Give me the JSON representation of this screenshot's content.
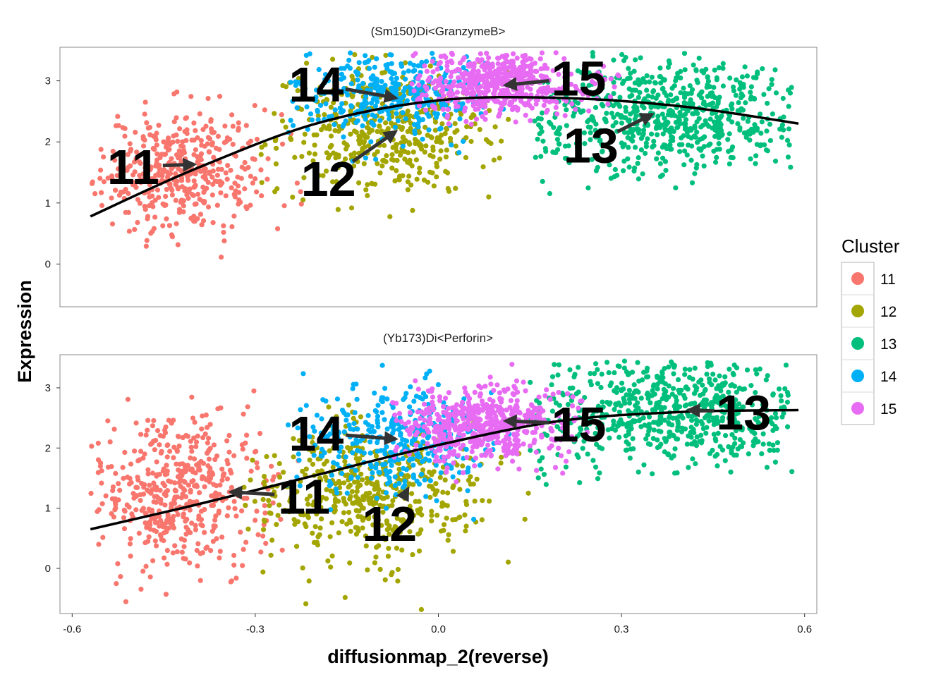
{
  "chart_data": {
    "type": "scatter",
    "xlabel": "diffusionmap_2(reverse)",
    "ylabel": "Expression",
    "xlim": [
      -0.62,
      0.62
    ],
    "x_ticks": [
      "-0.6",
      "-0.3",
      "0.0",
      "0.3",
      "0.6"
    ],
    "y_ticks": [
      "0",
      "1",
      "2",
      "3"
    ],
    "legend": {
      "title": "Cluster",
      "position": "right",
      "entries": [
        {
          "label": "11",
          "color": "#F8766D"
        },
        {
          "label": "12",
          "color": "#A3A500"
        },
        {
          "label": "13",
          "color": "#00BF7D"
        },
        {
          "label": "14",
          "color": "#00B0F6"
        },
        {
          "label": "15",
          "color": "#E76BF3"
        }
      ]
    },
    "panels": [
      {
        "title": "(Sm150)Di<GranzymeB>",
        "ylim": [
          -0.7,
          3.55
        ],
        "clusters": [
          {
            "name": "11",
            "x_mean": -0.42,
            "x_sd": 0.07,
            "y_mean": 1.55,
            "y_sd": 0.5,
            "n": 420,
            "x_range": [
              -0.57,
              -0.2
            ]
          },
          {
            "name": "12",
            "x_mean": -0.08,
            "x_sd": 0.09,
            "y_mean": 2.15,
            "y_sd": 0.5,
            "n": 450,
            "x_range": [
              -0.3,
              0.12
            ]
          },
          {
            "name": "13",
            "x_mean": 0.38,
            "x_sd": 0.12,
            "y_mean": 2.45,
            "y_sd": 0.45,
            "n": 650,
            "x_range": [
              0.15,
              0.58
            ]
          },
          {
            "name": "14",
            "x_mean": -0.07,
            "x_sd": 0.08,
            "y_mean": 2.75,
            "y_sd": 0.35,
            "n": 350,
            "x_range": [
              -0.25,
              0.12
            ]
          },
          {
            "name": "15",
            "x_mean": 0.1,
            "x_sd": 0.07,
            "y_mean": 2.95,
            "y_sd": 0.25,
            "n": 550,
            "x_range": [
              -0.05,
              0.3
            ]
          }
        ],
        "trend": {
          "x": [
            -0.57,
            -0.4,
            -0.2,
            0.0,
            0.2,
            0.4,
            0.59
          ],
          "y": [
            0.78,
            1.55,
            2.3,
            2.68,
            2.72,
            2.58,
            2.3
          ]
        },
        "labels": [
          {
            "text": "11",
            "x": -0.5,
            "y": 1.6,
            "arrow_to_x": -0.4,
            "arrow_to_y": 1.63
          },
          {
            "text": "12",
            "x": -0.18,
            "y": 1.4,
            "arrow_to_x": -0.07,
            "arrow_to_y": 2.17
          },
          {
            "text": "13",
            "x": 0.25,
            "y": 1.95,
            "arrow_to_x": 0.35,
            "arrow_to_y": 2.45
          },
          {
            "text": "14",
            "x": -0.2,
            "y": 2.95,
            "arrow_to_x": -0.07,
            "arrow_to_y": 2.72
          },
          {
            "text": "15",
            "x": 0.23,
            "y": 3.05,
            "arrow_to_x": 0.11,
            "arrow_to_y": 2.93
          }
        ]
      },
      {
        "title": "(Yb173)Di<Perforin>",
        "ylim": [
          -0.75,
          3.55
        ],
        "clusters": [
          {
            "name": "11",
            "x_mean": -0.43,
            "x_sd": 0.07,
            "y_mean": 1.25,
            "y_sd": 0.6,
            "n": 480,
            "x_range": [
              -0.57,
              -0.22
            ]
          },
          {
            "name": "12",
            "x_mean": -0.12,
            "x_sd": 0.09,
            "y_mean": 1.25,
            "y_sd": 0.55,
            "n": 500,
            "x_range": [
              -0.32,
              0.15
            ]
          },
          {
            "name": "13",
            "x_mean": 0.38,
            "x_sd": 0.12,
            "y_mean": 2.6,
            "y_sd": 0.45,
            "n": 620,
            "x_range": [
              0.15,
              0.58
            ]
          },
          {
            "name": "14",
            "x_mean": -0.07,
            "x_sd": 0.08,
            "y_mean": 2.15,
            "y_sd": 0.45,
            "n": 350,
            "x_range": [
              -0.25,
              0.12
            ]
          },
          {
            "name": "15",
            "x_mean": 0.07,
            "x_sd": 0.07,
            "y_mean": 2.4,
            "y_sd": 0.3,
            "n": 550,
            "x_range": [
              -0.08,
              0.25
            ]
          }
        ],
        "trend": {
          "x": [
            -0.57,
            -0.4,
            -0.2,
            0.0,
            0.2,
            0.4,
            0.59
          ],
          "y": [
            0.65,
            1.05,
            1.55,
            2.05,
            2.45,
            2.6,
            2.63
          ]
        },
        "labels": [
          {
            "text": "11",
            "x": -0.22,
            "y": 1.2,
            "arrow_to_x": -0.34,
            "arrow_to_y": 1.27
          },
          {
            "text": "12",
            "x": -0.08,
            "y": 0.75,
            "arrow_to_x": -0.05,
            "arrow_to_y": 1.32
          },
          {
            "text": "13",
            "x": 0.5,
            "y": 2.6,
            "arrow_to_x": 0.41,
            "arrow_to_y": 2.63
          },
          {
            "text": "14",
            "x": -0.2,
            "y": 2.25,
            "arrow_to_x": -0.07,
            "arrow_to_y": 2.15
          },
          {
            "text": "15",
            "x": 0.23,
            "y": 2.4,
            "arrow_to_x": 0.11,
            "arrow_to_y": 2.45
          }
        ]
      }
    ]
  }
}
